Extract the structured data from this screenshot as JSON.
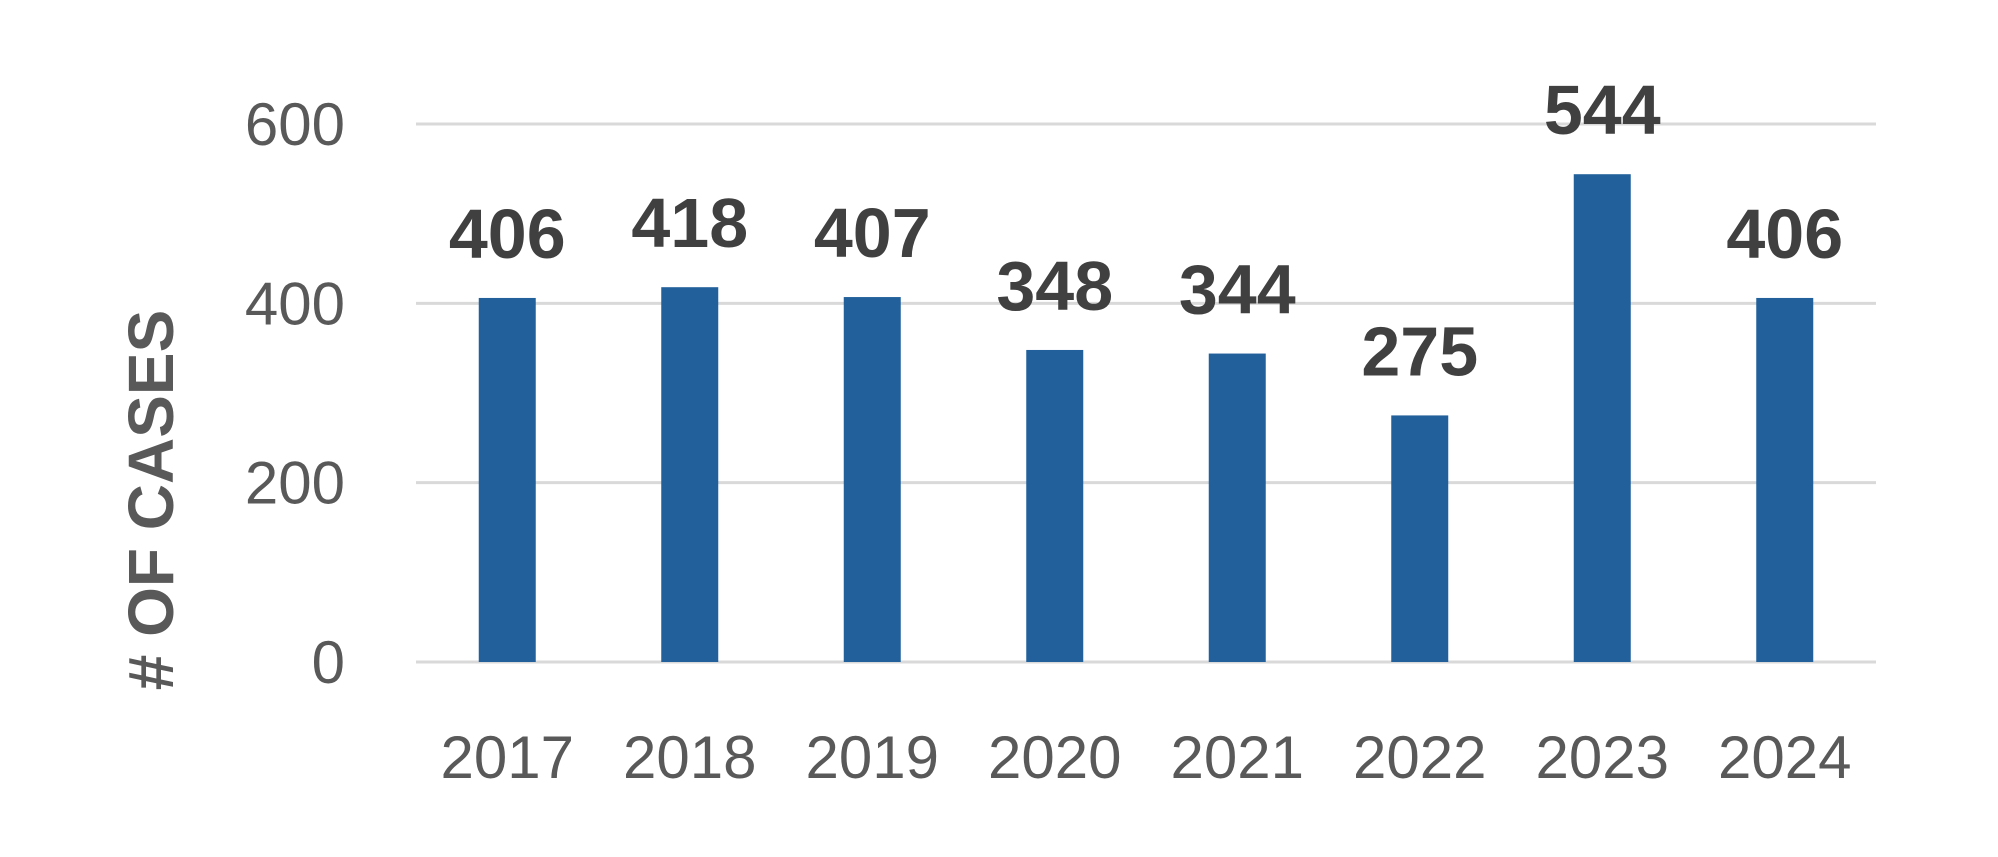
{
  "chart_data": {
    "type": "bar",
    "categories": [
      "2017",
      "2018",
      "2019",
      "2020",
      "2021",
      "2022",
      "2023",
      "2024"
    ],
    "values": [
      406,
      418,
      407,
      348,
      344,
      275,
      544,
      406
    ],
    "data_labels": [
      "406",
      "418",
      "407",
      "348",
      "344",
      "275",
      "544",
      "406"
    ],
    "ylabel": "# OF CASES",
    "ylim": [
      0,
      600
    ],
    "yticks": [
      0,
      200,
      400,
      600
    ],
    "ytick_labels": [
      "0",
      "200",
      "400",
      "600"
    ],
    "grid": true,
    "legend": "none",
    "bar_color": "#21609b"
  }
}
